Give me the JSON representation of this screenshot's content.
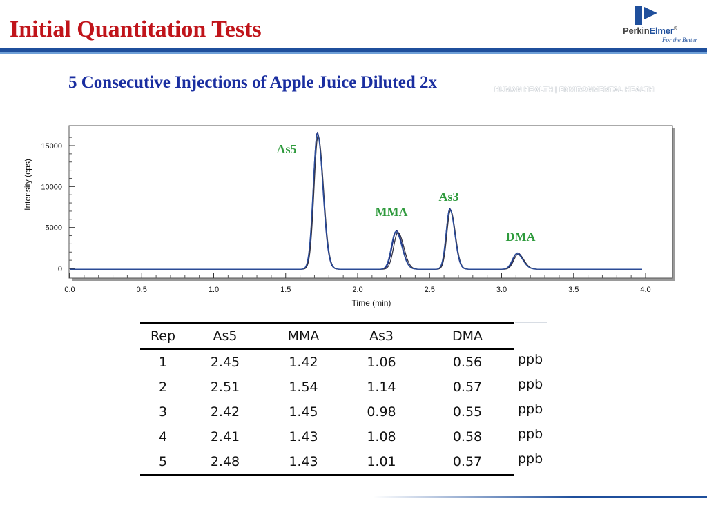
{
  "slide": {
    "title": "Initial Quantitation Tests",
    "subtitle": "5 Consecutive Injections of Apple Juice Diluted 2x",
    "tagline": "HUMAN HEALTH | ENVIRONMENTAL HEALTH",
    "accent_red": "#c0141a",
    "accent_blue": "#1f4f9c"
  },
  "logo": {
    "name_part1": "Perkin",
    "name_part2": "Elmer",
    "mark": "®",
    "slogan": "For the Better"
  },
  "chart_data": {
    "type": "line",
    "xlabel": "Time (min)",
    "ylabel": "Intensity (cps)",
    "xlim": [
      0.0,
      4.0
    ],
    "ylim": [
      -1200,
      17500
    ],
    "x_ticks": [
      "0.0",
      "0.5",
      "1.0",
      "1.5",
      "2.0",
      "2.5",
      "3.0",
      "3.5",
      "4.0"
    ],
    "y_ticks": [
      "0",
      "5000",
      "10000",
      "15000"
    ],
    "grid": false,
    "baseline": -100,
    "peak_labels": [
      {
        "label": "As5",
        "time": 1.72
      },
      {
        "label": "MMA",
        "time": 2.27
      },
      {
        "label": "As3",
        "time": 2.64
      },
      {
        "label": "DMA",
        "time": 3.11
      }
    ],
    "series": [
      {
        "color": "#1a2a7a",
        "peaks": [
          [
            1.72,
            16700,
            0.028
          ],
          [
            2.27,
            4700,
            0.03
          ],
          [
            2.64,
            7400,
            0.025
          ],
          [
            3.11,
            2000,
            0.03
          ]
        ]
      },
      {
        "color": "#333344",
        "peaks": [
          [
            1.725,
            16300,
            0.028
          ],
          [
            2.28,
            4500,
            0.03
          ],
          [
            2.645,
            7200,
            0.025
          ],
          [
            3.115,
            1850,
            0.03
          ]
        ]
      },
      {
        "color": "#2a4d9c",
        "peaks": [
          [
            1.72,
            16500,
            0.029
          ],
          [
            2.265,
            4600,
            0.031
          ],
          [
            2.64,
            7300,
            0.026
          ],
          [
            3.105,
            1900,
            0.031
          ]
        ]
      }
    ]
  },
  "table": {
    "columns": [
      "Rep",
      "As5",
      "MMA",
      "As3",
      "DMA"
    ],
    "unit": "ppb",
    "rows": [
      [
        "1",
        "2.45",
        "1.42",
        "1.06",
        "0.56"
      ],
      [
        "2",
        "2.51",
        "1.54",
        "1.14",
        "0.57"
      ],
      [
        "3",
        "2.42",
        "1.45",
        "0.98",
        "0.55"
      ],
      [
        "4",
        "2.41",
        "1.43",
        "1.08",
        "0.58"
      ],
      [
        "5",
        "2.48",
        "1.43",
        "1.01",
        "0.57"
      ]
    ]
  }
}
